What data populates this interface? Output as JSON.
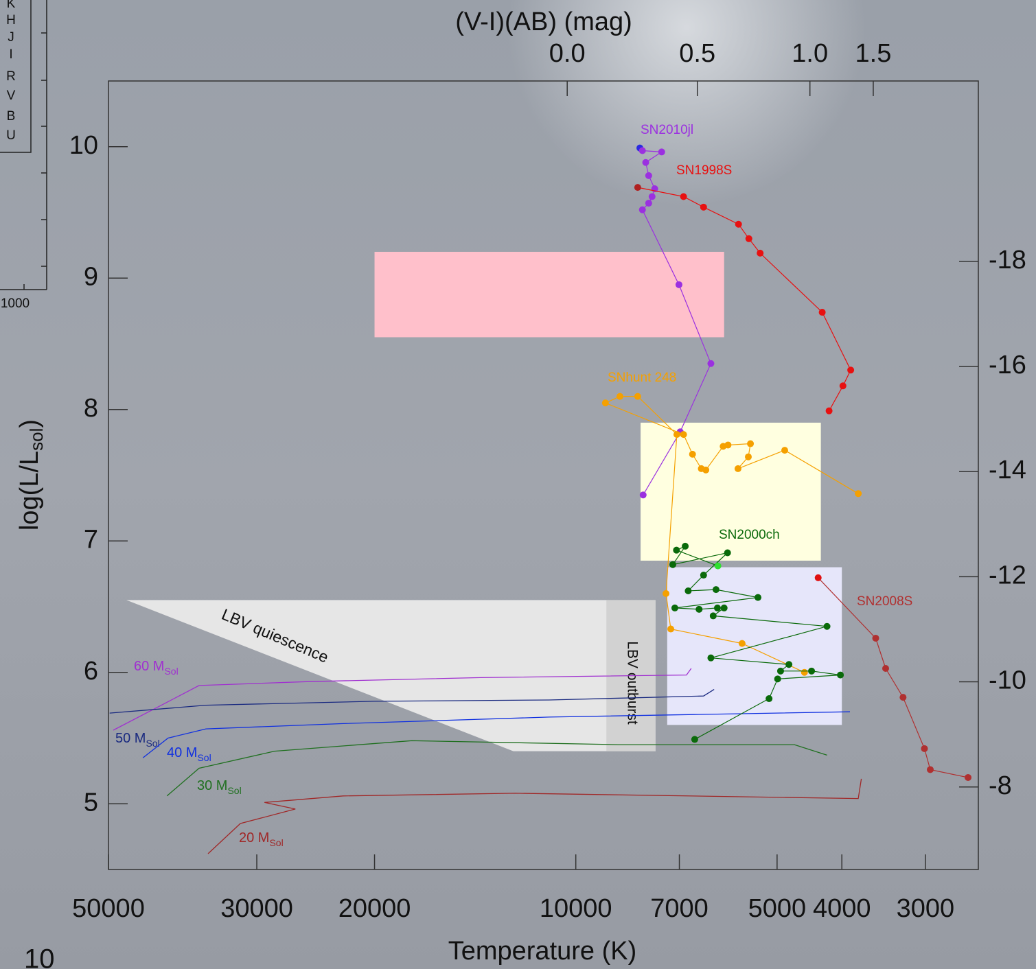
{
  "chart_data": {
    "type": "hr-diagram",
    "xlabel": "Temperature (K)",
    "x2label": "(V-I)(AB) (mag)",
    "ylabel": {
      "main": "log(L/L",
      "sub": "sol",
      "end": ")"
    },
    "xscale": "log",
    "xlim": [
      50000,
      2500
    ],
    "xticks": [
      50000,
      30000,
      20000,
      10000,
      7000,
      5000,
      4000,
      3000
    ],
    "x2ticks": [
      {
        "value": 0,
        "label": "0.0"
      },
      {
        "value": 0.5,
        "label": "0.5"
      },
      {
        "value": 1,
        "label": "1.0"
      },
      {
        "value": 1.5,
        "label": "1.5"
      }
    ],
    "x2tick_temperatures": [
      10300,
      6580,
      4465,
      3590
    ],
    "ylim": [
      4.5,
      10.5
    ],
    "yticks": [
      5,
      6,
      7,
      8,
      9,
      10
    ],
    "y2lim": [
      -6.43,
      -21.43
    ],
    "y2ticks": [
      -18,
      -16,
      -14,
      -12,
      -10,
      -8
    ],
    "regions": [
      {
        "color": "#e6e6e6",
        "T": [
          47000,
          7600,
          7600,
          12400
        ],
        "logL": [
          6.55,
          6.55,
          5.4,
          5.4
        ],
        "label": "LBV quiescence"
      },
      {
        "color": "#d2d2d2",
        "T": [
          9000,
          7600
        ],
        "logL": [
          5.4,
          6.55
        ],
        "label": "LBV outburst"
      },
      {
        "color": "#ffc0cb",
        "T": [
          20000,
          6000
        ],
        "logL": [
          8.55,
          9.2
        ]
      },
      {
        "color": "#ffffe0",
        "T": [
          8000,
          4300
        ],
        "logL": [
          6.85,
          7.9
        ]
      },
      {
        "color": "#e6e6fa",
        "T": [
          7300,
          4000
        ],
        "logL": [
          5.6,
          6.8
        ]
      }
    ],
    "tracks": [
      {
        "label": "60 M",
        "label_sub": "Sol",
        "color": "#a030d0",
        "T": [
          49180,
          41670,
          36600,
          25070,
          13880,
          6830,
          6720
        ],
        "logL": [
          5.56,
          5.75,
          5.9,
          5.93,
          5.96,
          5.98,
          6.03
        ]
      },
      {
        "label": "50 M",
        "label_sub": "Sol",
        "color": "#1a2a80",
        "T": [
          49800,
          35740,
          20000,
          10960,
          6440,
          6210
        ],
        "logL": [
          5.69,
          5.75,
          5.78,
          5.79,
          5.82,
          5.87
        ]
      },
      {
        "label": "40 M",
        "label_sub": "Sol",
        "color": "#1030e0",
        "T": [
          44400,
          40720,
          35740,
          22280,
          10960,
          3890
        ],
        "logL": [
          5.35,
          5.5,
          5.57,
          5.61,
          5.66,
          5.7
        ]
      },
      {
        "label": "30 M",
        "label_sub": "Sol",
        "color": "#207020",
        "T": [
          40880,
          36600,
          28220,
          17590,
          8650,
          4710,
          4210
        ],
        "logL": [
          5.06,
          5.27,
          5.4,
          5.48,
          5.45,
          5.45,
          5.37
        ]
      },
      {
        "label": "20 M",
        "label_sub": "Sol",
        "color": "#a02828",
        "T": [
          35490,
          31750,
          26270,
          29220,
          22280,
          12330,
          3780,
          3740
        ],
        "logL": [
          4.62,
          4.85,
          4.96,
          5.01,
          5.06,
          5.08,
          5.04,
          5.19
        ]
      }
    ],
    "series": [
      {
        "name": "SN2010jl",
        "color": "#9b30e0",
        "first_color": "#2a2ae0",
        "T": [
          8020,
          7950,
          7440,
          7860,
          7780,
          7620,
          7690,
          7780,
          7950,
          7010,
          6280,
          6980,
          7930
        ],
        "logL": [
          9.99,
          9.97,
          9.96,
          9.88,
          9.78,
          9.68,
          9.62,
          9.57,
          9.52,
          8.95,
          8.35,
          7.83,
          7.35
        ]
      },
      {
        "name": "SN1998S",
        "color": "#e81010",
        "first_color": "#b02020",
        "T": [
          8080,
          6900,
          6440,
          5710,
          5510,
          5300,
          4280,
          3880,
          3985,
          4180
        ],
        "logL": [
          9.69,
          9.62,
          9.54,
          9.41,
          9.3,
          9.19,
          8.74,
          8.3,
          8.18,
          7.99
        ]
      },
      {
        "name": "SNhunt 248",
        "color": "#f5a000",
        "first_color": "#f5a000",
        "T": [
          4550,
          5640,
          7210,
          7330,
          7060,
          8080,
          8590,
          9030,
          6900,
          6690,
          6490,
          6390,
          6020,
          5920,
          5480,
          5520,
          5720,
          4870,
          3780
        ],
        "logL": [
          6.0,
          6.22,
          6.33,
          6.6,
          7.81,
          8.1,
          8.1,
          8.05,
          7.81,
          7.66,
          7.55,
          7.54,
          7.72,
          7.73,
          7.74,
          7.64,
          7.55,
          7.69,
          7.36
        ]
      },
      {
        "name": "SN2000ch",
        "color": "#0a6a0a",
        "first_color": "#30e030",
        "T": [
          6130,
          7070,
          6860,
          7160,
          5930,
          6440,
          6790,
          6170,
          5340,
          7110,
          6540,
          6140,
          6000,
          6230,
          4210,
          6280,
          4800,
          4940,
          4440,
          4020,
          4990,
          5140,
          6640
        ],
        "logL": [
          6.81,
          6.93,
          6.96,
          6.82,
          6.91,
          6.74,
          6.62,
          6.63,
          6.57,
          6.49,
          6.48,
          6.49,
          6.49,
          6.43,
          6.35,
          6.11,
          6.06,
          6.01,
          6.01,
          5.98,
          5.95,
          5.8,
          5.49
        ]
      },
      {
        "name": "SN2008S",
        "color": "#b03030",
        "first_color": "#e01010",
        "T": [
          4340,
          3560,
          3440,
          3240,
          3010,
          2950,
          2590
        ],
        "logL": [
          6.72,
          6.26,
          6.03,
          5.81,
          5.42,
          5.26,
          5.2
        ]
      }
    ],
    "inset": {
      "bands": [
        "K",
        "H",
        "J",
        "I",
        "R",
        "V",
        "B",
        "U"
      ],
      "tick_label": "1000"
    },
    "corner_label": "10"
  }
}
